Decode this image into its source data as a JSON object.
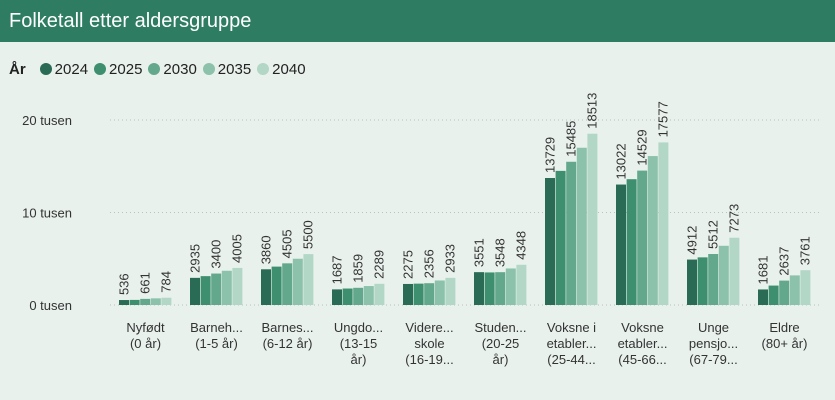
{
  "header": {
    "title": "Folketall etter aldersgruppe"
  },
  "legend": {
    "title": "År"
  },
  "chart_data": {
    "type": "bar",
    "title": "Folketall etter aldersgruppe",
    "xlabel": "",
    "ylabel": "",
    "ylim": [
      0,
      20000
    ],
    "y_ticks": [
      {
        "value": 0,
        "label": "0 tusen"
      },
      {
        "value": 10000,
        "label": "10 tusen"
      },
      {
        "value": 20000,
        "label": "20 tusen"
      }
    ],
    "grid": true,
    "legend_position": "top-left",
    "categories": [
      [
        "Nyfødt",
        "(0 år)"
      ],
      [
        "Barneh...",
        "(1-5 år)"
      ],
      [
        "Barnes...",
        "(6-12 år)"
      ],
      [
        "Ungdo...",
        "(13-15",
        "år)"
      ],
      [
        "Videre...",
        "skole",
        "(16-19..."
      ],
      [
        "Studen...",
        "(20-25",
        "år)"
      ],
      [
        "Voksne i",
        "etabler...",
        "(25-44..."
      ],
      [
        "Voksne",
        "etabler...",
        "(45-66..."
      ],
      [
        "Unge",
        "pensjo...",
        "(67-79..."
      ],
      [
        "Eldre",
        "(80+ år)"
      ]
    ],
    "series": [
      {
        "name": "2024",
        "color": "#2a6b55",
        "values": [
          536,
          2935,
          3860,
          1687,
          2275,
          3551,
          13729,
          13022,
          4912,
          1681
        ]
      },
      {
        "name": "2025",
        "color": "#3d8f6f",
        "values": [
          550,
          3120,
          4150,
          1780,
          2310,
          3520,
          14500,
          13600,
          5150,
          2100
        ]
      },
      {
        "name": "2030",
        "color": "#63a88c",
        "values": [
          661,
          3400,
          4505,
          1859,
          2356,
          3548,
          15485,
          14529,
          5512,
          2637
        ]
      },
      {
        "name": "2035",
        "color": "#8cc2ab",
        "values": [
          720,
          3700,
          5000,
          2050,
          2650,
          3950,
          17000,
          16100,
          6400,
          3200
        ]
      },
      {
        "name": "2040",
        "color": "#b2d7c6",
        "values": [
          784,
          4005,
          5500,
          2289,
          2933,
          4348,
          18513,
          17577,
          7273,
          3761
        ]
      }
    ],
    "data_labels": [
      [
        536,
        661,
        784
      ],
      [
        2935,
        3400,
        4005
      ],
      [
        3860,
        4505,
        5500
      ],
      [
        1687,
        1859,
        2289
      ],
      [
        2275,
        2356,
        2933
      ],
      [
        3551,
        3548,
        4348
      ],
      [
        13729,
        15485,
        18513
      ],
      [
        13022,
        14529,
        17577
      ],
      [
        4912,
        5512,
        7273
      ],
      [
        1681,
        2637,
        3761
      ]
    ]
  }
}
